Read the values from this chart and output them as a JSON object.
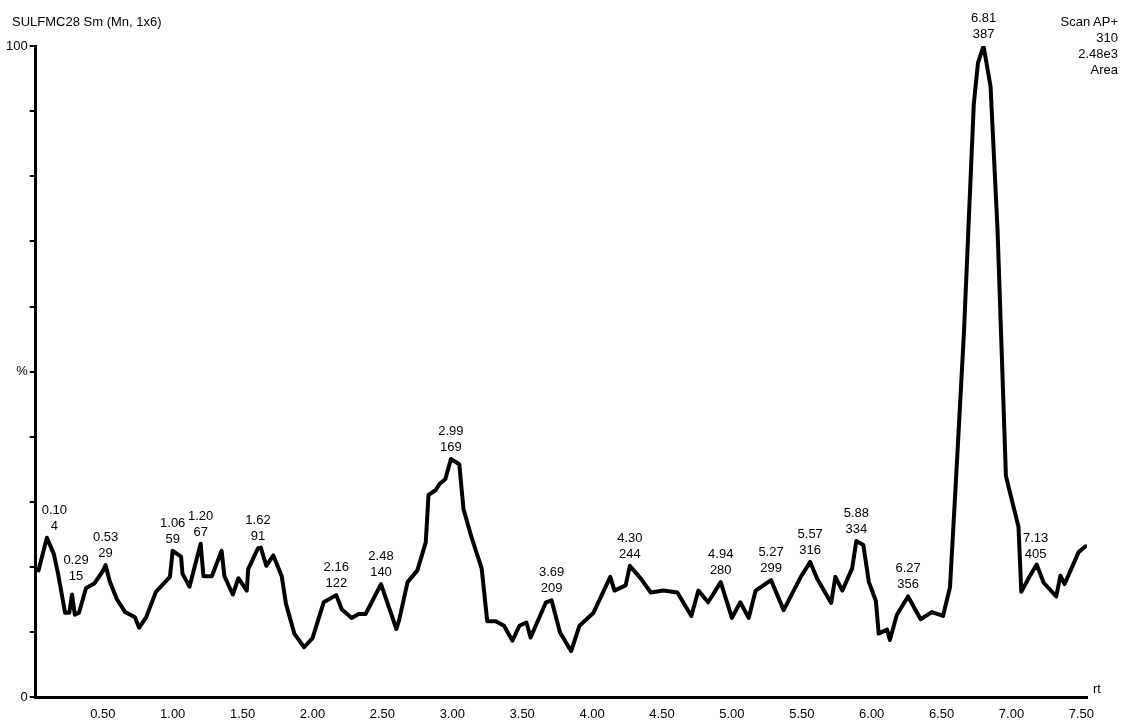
{
  "chart_data": {
    "type": "line",
    "title": "SULFMC28 Sm (Mn, 1x6)",
    "xlabel": "rt",
    "x": [
      0.04,
      0.1,
      0.15,
      0.18,
      0.23,
      0.26,
      0.28,
      0.3,
      0.33,
      0.38,
      0.44,
      0.5,
      0.52,
      0.55,
      0.6,
      0.66,
      0.73,
      0.76,
      0.81,
      0.88,
      0.98,
      1.0,
      1.06,
      1.07,
      1.12,
      1.2,
      1.22,
      1.28,
      1.35,
      1.37,
      1.43,
      1.47,
      1.53,
      1.54,
      1.61,
      1.63,
      1.67,
      1.72,
      1.78,
      1.81,
      1.87,
      1.94,
      2.0,
      2.08,
      2.17,
      2.21,
      2.28,
      2.33,
      2.38,
      2.49,
      2.6,
      2.62,
      2.68,
      2.75,
      2.81,
      2.83,
      2.88,
      2.91,
      2.95,
      2.99,
      3.05,
      3.08,
      3.14,
      3.21,
      3.25,
      3.31,
      3.37,
      3.43,
      3.48,
      3.53,
      3.56,
      3.67,
      3.71,
      3.77,
      3.85,
      3.91,
      4.01,
      4.13,
      4.16,
      4.24,
      4.27,
      4.35,
      4.42,
      4.51,
      4.61,
      4.71,
      4.76,
      4.83,
      4.92,
      5.0,
      5.06,
      5.12,
      5.17,
      5.28,
      5.37,
      5.49,
      5.56,
      5.61,
      5.71,
      5.74,
      5.79,
      5.86,
      5.89,
      5.94,
      5.98,
      6.03,
      6.05,
      6.11,
      6.13,
      6.18,
      6.26,
      6.35,
      6.43,
      6.51,
      6.56,
      6.61,
      6.66,
      6.73,
      6.76,
      6.8,
      6.85,
      6.9,
      6.96,
      7.0,
      7.05,
      7.07,
      7.13,
      7.18,
      7.23,
      7.32,
      7.35,
      7.38,
      7.48,
      7.53
    ],
    "series": [
      {
        "color": "#000000",
        "values": [
          19.5,
          24.5,
          22,
          19,
          13,
          13,
          15.8,
          12.7,
          13,
          16.8,
          17.5,
          19.4,
          20.3,
          17.8,
          15.1,
          13.1,
          12.3,
          10.7,
          12.3,
          16.2,
          18.5,
          22.5,
          21.6,
          19,
          17,
          23.6,
          18.6,
          18.6,
          22.5,
          18.6,
          15.8,
          18.3,
          16.4,
          19.7,
          22.9,
          23,
          20.2,
          21.8,
          18.6,
          14.4,
          9.8,
          7.7,
          9.1,
          14.6,
          15.7,
          13.5,
          12.2,
          12.8,
          12.8,
          17.4,
          10.5,
          11.9,
          17.7,
          19.5,
          23.8,
          31.1,
          31.8,
          32.8,
          33.5,
          36.6,
          35.8,
          28.9,
          24.4,
          19.8,
          11.7,
          11.7,
          11,
          8.7,
          11,
          11.5,
          9.2,
          14.6,
          14.9,
          10,
          7.1,
          11,
          13,
          18.5,
          16.4,
          17.2,
          20.2,
          18.2,
          16.1,
          16.4,
          16.1,
          12.5,
          16.4,
          14.6,
          17.7,
          12.2,
          14.6,
          12.2,
          16.4,
          18,
          13.4,
          18.4,
          20.8,
          18.2,
          14.5,
          18.5,
          16.4,
          19.8,
          24,
          23.4,
          17.7,
          14.8,
          9.8,
          10.4,
          8.8,
          12.7,
          15.5,
          12,
          13.1,
          12.5,
          16.9,
          36.2,
          56.1,
          91,
          97.4,
          100,
          93.8,
          71.8,
          34,
          30.5,
          26.2,
          16.2,
          18.6,
          20.4,
          17.6,
          15.5,
          18.7,
          17.4,
          22.3,
          23.2
        ]
      }
    ],
    "xlim": [
      0.02,
      7.54
    ],
    "ylim": [
      0,
      100
    ],
    "xticks": [
      {
        "value": 0.5,
        "label": "0.50"
      },
      {
        "value": 1,
        "label": "1.00"
      },
      {
        "value": 1.5,
        "label": "1.50"
      },
      {
        "value": 2,
        "label": "2.00"
      },
      {
        "value": 2.5,
        "label": "2.50"
      },
      {
        "value": 3,
        "label": "3.00"
      },
      {
        "value": 3.5,
        "label": "3.50"
      },
      {
        "value": 4,
        "label": "4.00"
      },
      {
        "value": 4.5,
        "label": "4.50"
      },
      {
        "value": 5,
        "label": "5.00"
      },
      {
        "value": 5.5,
        "label": "5.50"
      },
      {
        "value": 6,
        "label": "6.00"
      },
      {
        "value": 6.5,
        "label": "6.50"
      },
      {
        "value": 7,
        "label": "7.00"
      },
      {
        "value": 7.5,
        "label": "7.50"
      }
    ],
    "yticks": [
      0,
      {
        "value": 10,
        "label": null
      },
      {
        "value": 20,
        "label": null
      },
      {
        "value": 30,
        "label": null
      },
      {
        "value": 40,
        "label": null
      },
      {
        "value": 50,
        "label": "%"
      },
      {
        "value": 60,
        "label": null
      },
      {
        "value": 70,
        "label": null
      },
      {
        "value": 80,
        "label": null
      },
      {
        "value": 90,
        "label": null
      },
      100
    ],
    "grid": false,
    "legend": false,
    "marker": "none",
    "line_style": "solid",
    "annotations": [
      "Scan AP+",
      "310",
      "2.48e3",
      "Area",
      {
        "text": "0.10\n4",
        "x": 0.1,
        "y": 24.5
      },
      {
        "text": "0.29\n15",
        "x": 0.28,
        "y": 15.8
      },
      {
        "text": "0.53\n29",
        "x": 0.52,
        "y": 20.3
      },
      {
        "text": "1.06\n59",
        "x": 1.0,
        "y": 22.5
      },
      {
        "text": "1.20\n67",
        "x": 1.2,
        "y": 23.6
      },
      {
        "text": "1.62\n91",
        "x": 1.61,
        "y": 22.9
      },
      {
        "text": "2.16\n122",
        "x": 2.17,
        "y": 15.7
      },
      {
        "text": "2.48\n140",
        "x": 2.49,
        "y": 17.4
      },
      {
        "text": "2.99\n169",
        "x": 2.99,
        "y": 36.6
      },
      {
        "text": "3.69\n209",
        "x": 3.71,
        "y": 14.9
      },
      {
        "text": "4.30\n244",
        "x": 4.27,
        "y": 20.2
      },
      {
        "text": "4.94\n280",
        "x": 4.92,
        "y": 17.7
      },
      {
        "text": "5.27\n299",
        "x": 5.28,
        "y": 18
      },
      {
        "text": "5.57\n316",
        "x": 5.56,
        "y": 20.8
      },
      {
        "text": "5.88\n334",
        "x": 5.89,
        "y": 24
      },
      {
        "text": "6.27\n356",
        "x": 6.26,
        "y": 15.5
      },
      {
        "text": "6.81\n387",
        "x": 6.8,
        "y": 100
      },
      {
        "text": "7.13\n405",
        "x": 7.13,
        "y": 18.6
      }
    ]
  }
}
